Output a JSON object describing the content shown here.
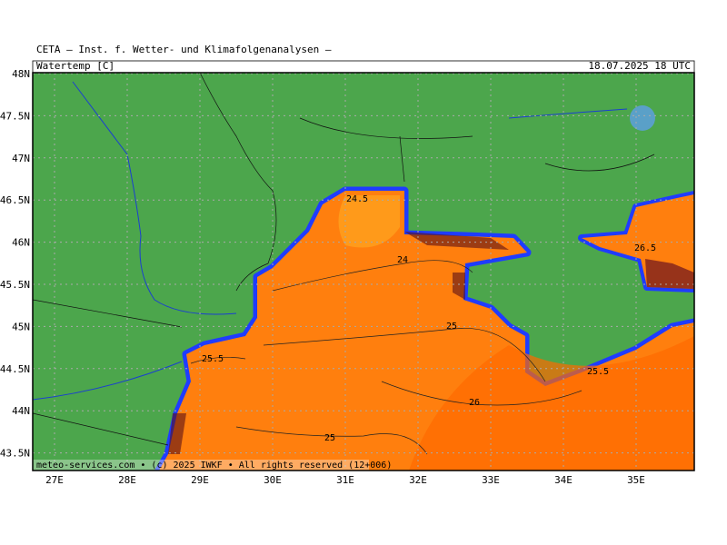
{
  "header": {
    "title": "CETA — Inst. f. Wetter- und Klimafolgenanalysen —",
    "parameter": "Watertemp [C]",
    "valid_time": "18.07.2025 18 UTC"
  },
  "axes": {
    "latitude_labels": [
      "48N",
      "47.5N",
      "47N",
      "46.5N",
      "46N",
      "45.5N",
      "45N",
      "44.5N",
      "44N",
      "43.5N"
    ],
    "longitude_labels": [
      "27E",
      "28E",
      "29E",
      "30E",
      "31E",
      "32E",
      "33E",
      "34E",
      "35E"
    ]
  },
  "contour_labels": [
    "24.5",
    "24",
    "25",
    "26",
    "25",
    "26.5",
    "25.5",
    "25.5"
  ],
  "footer": "meteo-services.com • (c) 2025 IWKF • All rights reserved (12+006)"
}
